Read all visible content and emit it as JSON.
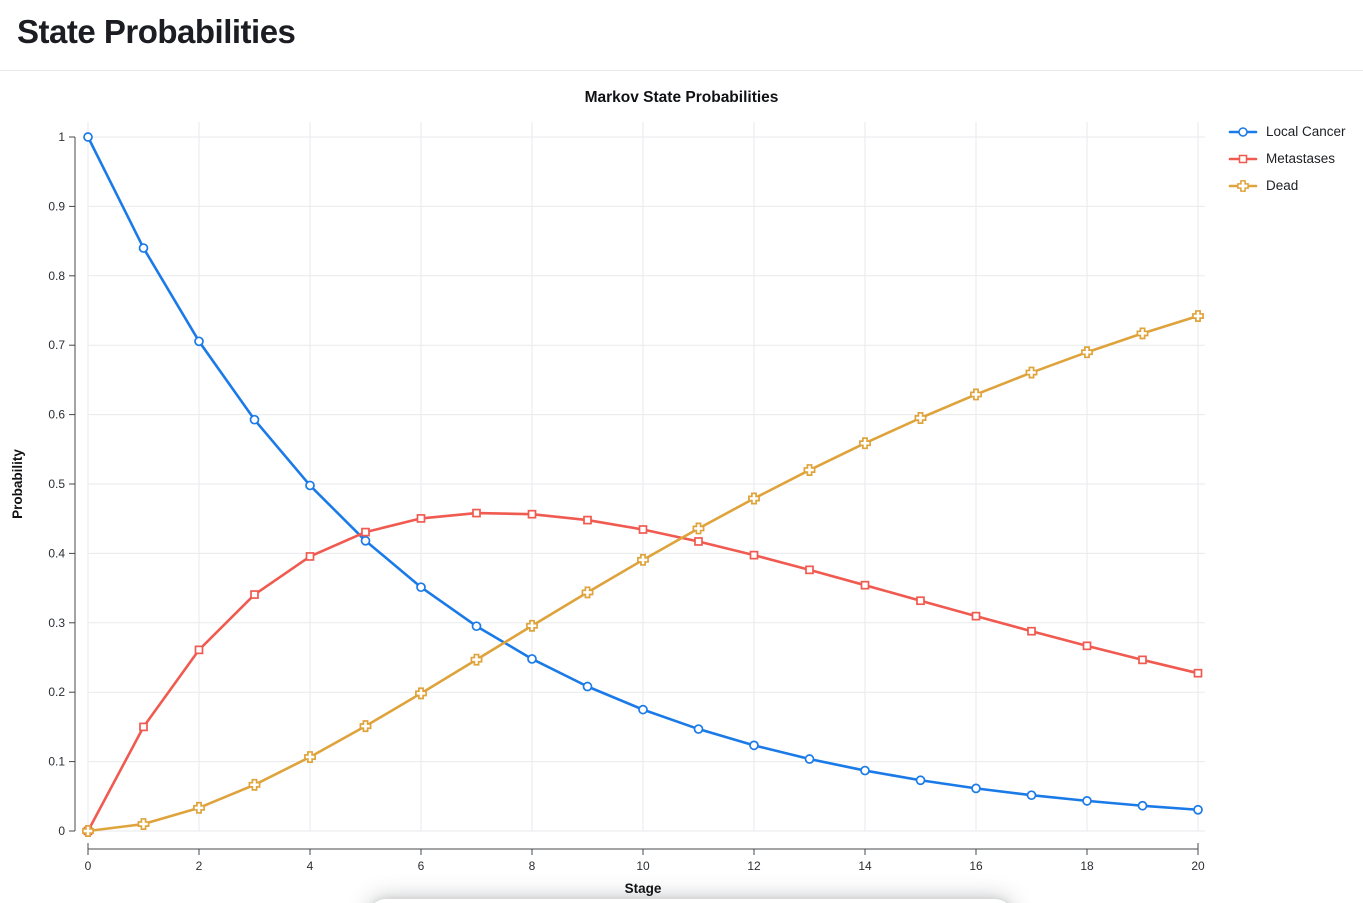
{
  "page": {
    "title": "State Probabilities"
  },
  "chart_data": {
    "type": "line",
    "title": "Markov State Probabilities",
    "xlabel": "Stage",
    "ylabel": "Probability",
    "x": [
      0,
      1,
      2,
      3,
      4,
      5,
      6,
      7,
      8,
      9,
      10,
      11,
      12,
      13,
      14,
      15,
      16,
      17,
      18,
      19,
      20
    ],
    "series": [
      {
        "name": "Local Cancer",
        "color": "#1a7ae8",
        "marker": "circle",
        "values": [
          1,
          0.84,
          0.7056,
          0.5927,
          0.4979,
          0.4182,
          0.3513,
          0.2951,
          0.2479,
          0.2082,
          0.1749,
          0.1469,
          0.1234,
          0.1037,
          0.0871,
          0.0731,
          0.0614,
          0.0516,
          0.0434,
          0.0364,
          0.0306
        ]
      },
      {
        "name": "Metastases",
        "color": "#f05a50",
        "marker": "square",
        "values": [
          0,
          0.15,
          0.261,
          0.3407,
          0.3956,
          0.4307,
          0.4504,
          0.4581,
          0.4565,
          0.448,
          0.4344,
          0.4172,
          0.3975,
          0.3763,
          0.3542,
          0.3318,
          0.3096,
          0.2879,
          0.2668,
          0.2466,
          0.2274
        ]
      },
      {
        "name": "Dead",
        "color": "#dfa33c",
        "marker": "cross",
        "values": [
          0,
          0.01,
          0.0334,
          0.0666,
          0.1066,
          0.1511,
          0.1983,
          0.2469,
          0.2957,
          0.3438,
          0.3907,
          0.4359,
          0.4791,
          0.5201,
          0.5588,
          0.5951,
          0.629,
          0.6606,
          0.6899,
          0.717,
          0.742
        ]
      }
    ],
    "xlim": [
      0,
      20
    ],
    "ylim": [
      0,
      1
    ],
    "x_ticks": [
      0,
      2,
      4,
      6,
      8,
      10,
      12,
      14,
      16,
      18,
      20
    ],
    "y_ticks": [
      0,
      0.1,
      0.2,
      0.3,
      0.4,
      0.5,
      0.6,
      0.7,
      0.8,
      0.9,
      1
    ],
    "grid": true,
    "legend_position": "right"
  },
  "colors": {
    "grid": "#e8eaec",
    "axis": "#45484d",
    "tick_label": "#2b2e33",
    "title_text": "#1b1d22"
  }
}
